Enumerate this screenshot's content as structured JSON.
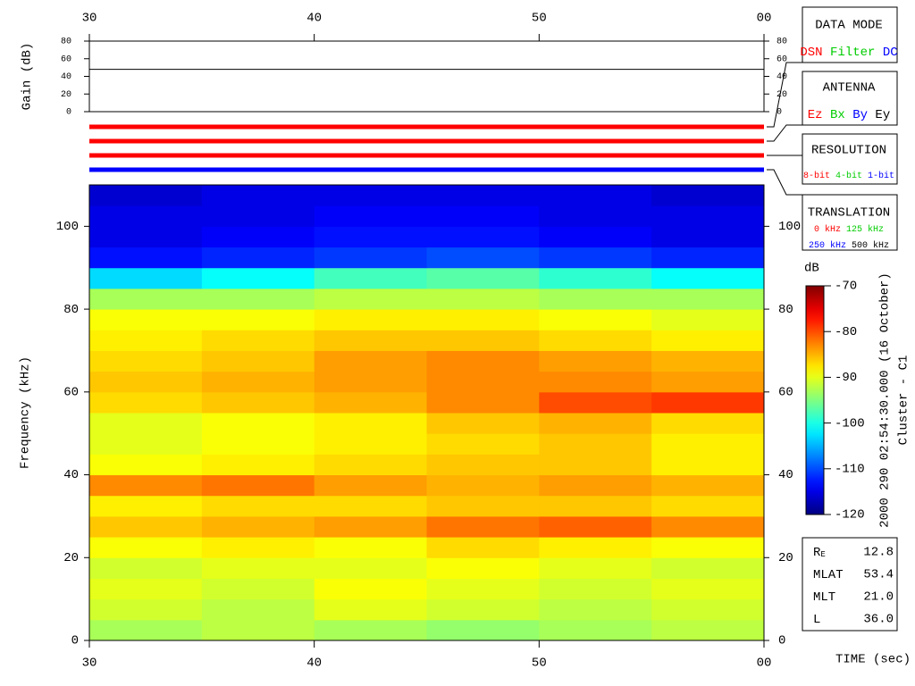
{
  "chart_data": [
    {
      "type": "line",
      "ylabel": "Gain (dB)",
      "x": [
        30,
        60
      ],
      "values": [
        48,
        48
      ],
      "color": "#000000",
      "xlim": [
        30,
        60
      ],
      "xticks": [
        30,
        40,
        50,
        {
          "value": 60,
          "label": "00"
        }
      ],
      "ylim": [
        0,
        80
      ],
      "yticks": [
        0,
        20,
        40,
        60,
        80
      ]
    },
    {
      "type": "heatmap",
      "ylabel": "Frequency (kHz)",
      "xlabel": "TIME (sec)",
      "xlim": [
        30,
        60
      ],
      "xticks": [
        30,
        40,
        50,
        {
          "value": 60,
          "label": "00"
        }
      ],
      "ylim": [
        0,
        110
      ],
      "yticks": [
        0,
        20,
        40,
        60,
        80,
        100
      ],
      "x": [
        30,
        35,
        40,
        45,
        50,
        55
      ],
      "y": [
        0,
        5,
        10,
        15,
        20,
        25,
        30,
        35,
        40,
        45,
        50,
        55,
        60,
        65,
        70,
        75,
        80,
        85,
        90,
        95,
        100,
        105
      ],
      "z": [
        [
          -93,
          -92,
          -93,
          -94,
          -93,
          -92
        ],
        [
          -91,
          -92,
          -90,
          -91,
          -92,
          -91
        ],
        [
          -90,
          -91,
          -89,
          -90,
          -91,
          -90
        ],
        [
          -91,
          -90,
          -90,
          -89,
          -90,
          -91
        ],
        [
          -89,
          -88,
          -89,
          -87,
          -88,
          -89
        ],
        [
          -86,
          -85,
          -84,
          -82,
          -81,
          -83
        ],
        [
          -88,
          -87,
          -87,
          -86,
          -86,
          -87
        ],
        [
          -83,
          -82,
          -84,
          -85,
          -84,
          -85
        ],
        [
          -89,
          -88,
          -87,
          -86,
          -86,
          -88
        ],
        [
          -90,
          -89,
          -88,
          -87,
          -86,
          -88
        ],
        [
          -90,
          -89,
          -88,
          -86,
          -85,
          -87
        ],
        [
          -87,
          -86,
          -85,
          -83,
          -80,
          -79
        ],
        [
          -86,
          -85,
          -84,
          -83,
          -83,
          -84
        ],
        [
          -87,
          -86,
          -84,
          -83,
          -84,
          -85
        ],
        [
          -88,
          -87,
          -86,
          -86,
          -87,
          -88
        ],
        [
          -89,
          -89,
          -88,
          -88,
          -89,
          -90
        ],
        [
          -93,
          -93,
          -92,
          -92,
          -93,
          -93
        ],
        [
          -103,
          -101,
          -98,
          -97,
          -99,
          -101
        ],
        [
          -113,
          -112,
          -111,
          -110,
          -111,
          -112
        ],
        [
          -115,
          -114,
          -113,
          -113,
          -114,
          -115
        ],
        [
          -115,
          -115,
          -114,
          -114,
          -115,
          -115
        ],
        [
          -116,
          -115,
          -115,
          -115,
          -115,
          -116
        ]
      ],
      "colorbar_label": "dB",
      "clim": [
        -120,
        -70
      ],
      "cticks": [
        -120,
        -110,
        -100,
        -90,
        -80,
        -70
      ]
    }
  ],
  "panels": {
    "status_lines": [
      "#ff0000",
      "#ff0000",
      "#ff0000",
      "#0000ff"
    ],
    "data_mode": {
      "title": "DATA MODE",
      "options": [
        {
          "label": "DSN",
          "color": "#ff0000"
        },
        {
          "label": "Filter",
          "color": "#00cc00"
        },
        {
          "label": "DC",
          "color": "#0000ff"
        }
      ]
    },
    "antenna": {
      "title": "ANTENNA",
      "options": [
        {
          "label": "Ez",
          "color": "#ff0000"
        },
        {
          "label": "Bx",
          "color": "#00cc00"
        },
        {
          "label": "By",
          "color": "#0000ff"
        },
        {
          "label": "Ey",
          "color": "#000000"
        }
      ]
    },
    "resolution": {
      "title": "RESOLUTION",
      "options": [
        {
          "label": "8-bit",
          "color": "#ff0000"
        },
        {
          "label": "4-bit",
          "color": "#00cc00"
        },
        {
          "label": "1-bit",
          "color": "#0000ff"
        }
      ]
    },
    "translation": {
      "title": "TRANSLATION",
      "options": [
        {
          "label": "0 kHz",
          "color": "#ff0000"
        },
        {
          "label": "125 kHz",
          "color": "#00cc00"
        },
        {
          "label": "250 kHz",
          "color": "#0000ff"
        },
        {
          "label": "500 kHz",
          "color": "#000000"
        }
      ]
    },
    "info": [
      {
        "label": "R",
        "sub": "E",
        "value": "12.8"
      },
      {
        "label": "MLAT",
        "value": "53.4"
      },
      {
        "label": "MLT",
        "value": "21.0"
      },
      {
        "label": "L",
        "value": "36.0"
      }
    ],
    "event": "2000 290 02:54:30.000 (16 October)",
    "spacecraft": "Cluster - C1"
  }
}
